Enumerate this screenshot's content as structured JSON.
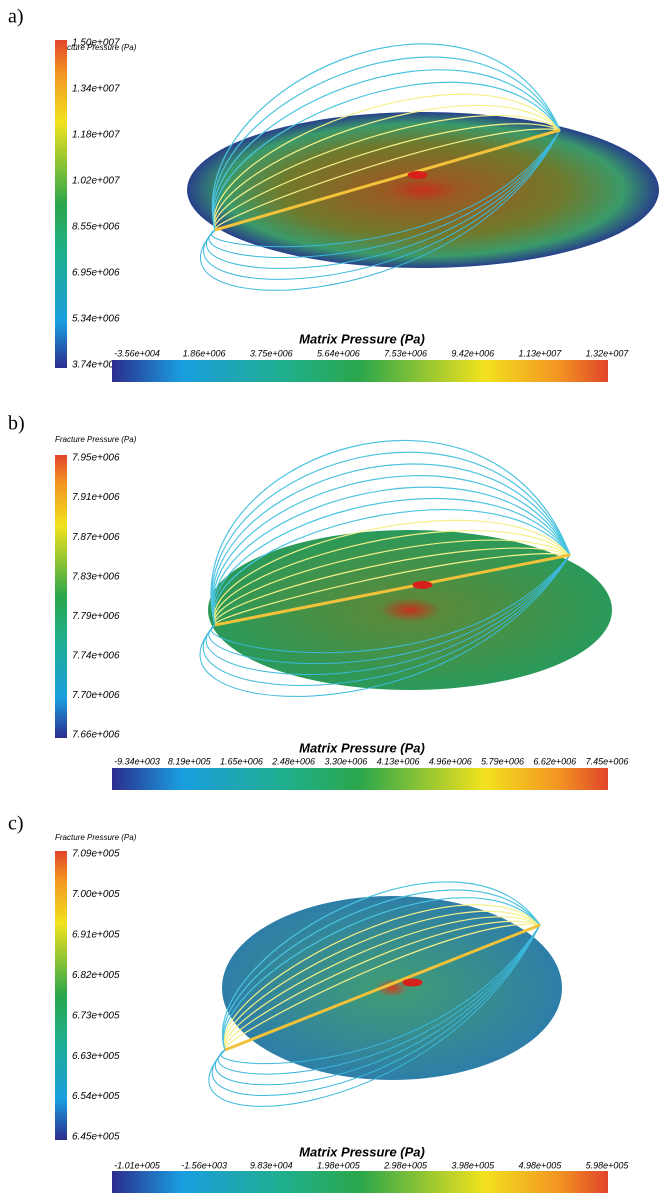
{
  "panels": [
    {
      "label": "a)",
      "fracture_title": "Fracture Pressure (Pa)",
      "fracture_ticks": [
        "1.50e+007",
        "1.34e+007",
        "1.18e+007",
        "1.02e+007",
        "8.55e+006",
        "6.95e+006",
        "5.34e+006",
        "3.74e+006"
      ],
      "matrix_title": "Matrix Pressure (Pa)",
      "matrix_ticks": [
        "-3.56e+004",
        "1.86e+006",
        "3.75e+006",
        "5.64e+006",
        "7.53e+006",
        "9.42e+006",
        "1.13e+007",
        "1.32e+007"
      ]
    },
    {
      "label": "b)",
      "fracture_title": "Fracture Pressure (Pa)",
      "fracture_ticks": [
        "7.95e+006",
        "7.91e+006",
        "7.87e+006",
        "7.83e+006",
        "7.79e+006",
        "7.74e+006",
        "7.70e+006",
        "7.66e+006"
      ],
      "matrix_title": "Matrix Pressure (Pa)",
      "matrix_ticks": [
        "-9.34e+003",
        "8.19e+005",
        "1.65e+006",
        "2.48e+006",
        "3.30e+006",
        "4.13e+006",
        "4.96e+006",
        "5.79e+006",
        "6.62e+006",
        "7.45e+006"
      ]
    },
    {
      "label": "c)",
      "fracture_title": "Fracture Pressure (Pa)",
      "fracture_ticks": [
        "7.09e+005",
        "7.00e+005",
        "6.91e+005",
        "6.82e+005",
        "6.73e+005",
        "6.63e+005",
        "6.54e+005",
        "6.45e+005"
      ],
      "matrix_title": "Matrix Pressure (Pa)",
      "matrix_ticks": [
        "-1.01e+005",
        "-1.56e+003",
        "9.83e+004",
        "1.98e+005",
        "2.98e+005",
        "3.98e+005",
        "4.98e+005",
        "5.98e+005"
      ]
    }
  ]
}
